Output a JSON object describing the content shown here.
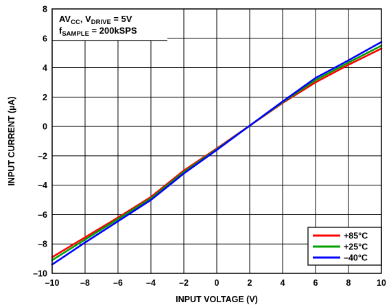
{
  "chart_data": {
    "type": "line",
    "xlabel": "INPUT VOLTAGE (V)",
    "ylabel": "INPUT CURRENT (µA)",
    "xlim": [
      -10,
      10
    ],
    "ylim": [
      -10,
      8
    ],
    "x_ticks": [
      "–10",
      "–8",
      "–6",
      "–4",
      "–2",
      "0",
      "2",
      "4",
      "6",
      "8",
      "10"
    ],
    "y_ticks": [
      "8",
      "6",
      "4",
      "2",
      "0",
      "–2",
      "–4",
      "–6",
      "–8",
      "–10"
    ],
    "grid": true,
    "legend_position": "bottom-right",
    "annotation": {
      "line1": {
        "a": "AV",
        "a_sub": "CC",
        "b": ", V",
        "b_sub": "DRIVE",
        "c": " = 5V"
      },
      "line2": {
        "a": "f",
        "a_sub": "SAMPLE",
        "b": " = 200kSPS"
      }
    },
    "series": [
      {
        "name": "+85°C",
        "color": "#ff0000",
        "x": [
          -10,
          -8,
          -6,
          -4,
          -2,
          0,
          2,
          4,
          6,
          8,
          10
        ],
        "y": [
          -8.9,
          -7.55,
          -6.2,
          -4.8,
          -3.0,
          -1.5,
          0.05,
          1.6,
          3.0,
          4.2,
          5.3
        ]
      },
      {
        "name": "+25°C",
        "color": "#00a000",
        "x": [
          -10,
          -8,
          -6,
          -4,
          -2,
          0,
          2,
          4,
          6,
          8,
          10
        ],
        "y": [
          -9.1,
          -7.7,
          -6.3,
          -4.9,
          -3.1,
          -1.55,
          0.05,
          1.65,
          3.15,
          4.35,
          5.5
        ]
      },
      {
        "name": "–40°C",
        "color": "#0000ff",
        "x": [
          -10,
          -8,
          -6,
          -4,
          -2,
          0,
          2,
          4,
          6,
          8,
          10
        ],
        "y": [
          -9.4,
          -7.9,
          -6.45,
          -5.0,
          -3.2,
          -1.6,
          0.05,
          1.7,
          3.3,
          4.5,
          5.75
        ]
      }
    ]
  }
}
